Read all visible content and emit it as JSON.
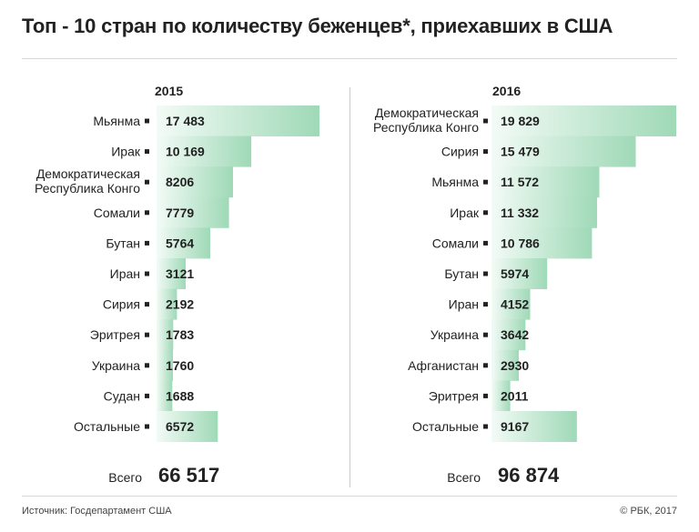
{
  "title": "Топ - 10 стран по количеству беженцев*, приехавших в США",
  "footer": {
    "source": "Источник: Госдепартамент США",
    "credit": "© РБК, 2017"
  },
  "colors": {
    "bar_light": "#f3fbf6",
    "bar_dark": "#9fd9b7",
    "marker": "#222222",
    "text": "#222222"
  },
  "chart_data": [
    {
      "type": "bar",
      "orientation": "horizontal",
      "year": "2015",
      "total_label": "Всего",
      "total_value": "66 517",
      "categories": [
        [
          "Мьянма"
        ],
        [
          "Ирак"
        ],
        [
          "Демократическая",
          "Республика Конго"
        ],
        [
          "Сомали"
        ],
        [
          "Бутан"
        ],
        [
          "Иран"
        ],
        [
          "Сирия"
        ],
        [
          "Эритрея"
        ],
        [
          "Украина"
        ],
        [
          "Судан"
        ],
        [
          "Остальные"
        ]
      ],
      "values": [
        17483,
        10169,
        8206,
        7779,
        5764,
        3121,
        2192,
        1783,
        1760,
        1688,
        6572
      ],
      "value_labels": [
        "17 483",
        "10 169",
        "8206",
        "7779",
        "5764",
        "3121",
        "2192",
        "1783",
        "1760",
        "1688",
        "6572"
      ],
      "xlim": [
        0,
        19829
      ]
    },
    {
      "type": "bar",
      "orientation": "horizontal",
      "year": "2016",
      "total_label": "Всего",
      "total_value": "96 874",
      "categories": [
        [
          "Демократическая",
          "Республика Конго"
        ],
        [
          "Сирия"
        ],
        [
          "Мьянма"
        ],
        [
          "Ирак"
        ],
        [
          "Сомали"
        ],
        [
          "Бутан"
        ],
        [
          "Иран"
        ],
        [
          "Украина"
        ],
        [
          "Афганистан"
        ],
        [
          "Эритрея"
        ],
        [
          "Остальные"
        ]
      ],
      "values": [
        19829,
        15479,
        11572,
        11332,
        10786,
        5974,
        4152,
        3642,
        2930,
        2011,
        9167
      ],
      "value_labels": [
        "19 829",
        "15 479",
        "11 572",
        "11 332",
        "10 786",
        "5974",
        "4152",
        "3642",
        "2930",
        "2011",
        "9167"
      ],
      "xlim": [
        0,
        19829
      ]
    }
  ]
}
